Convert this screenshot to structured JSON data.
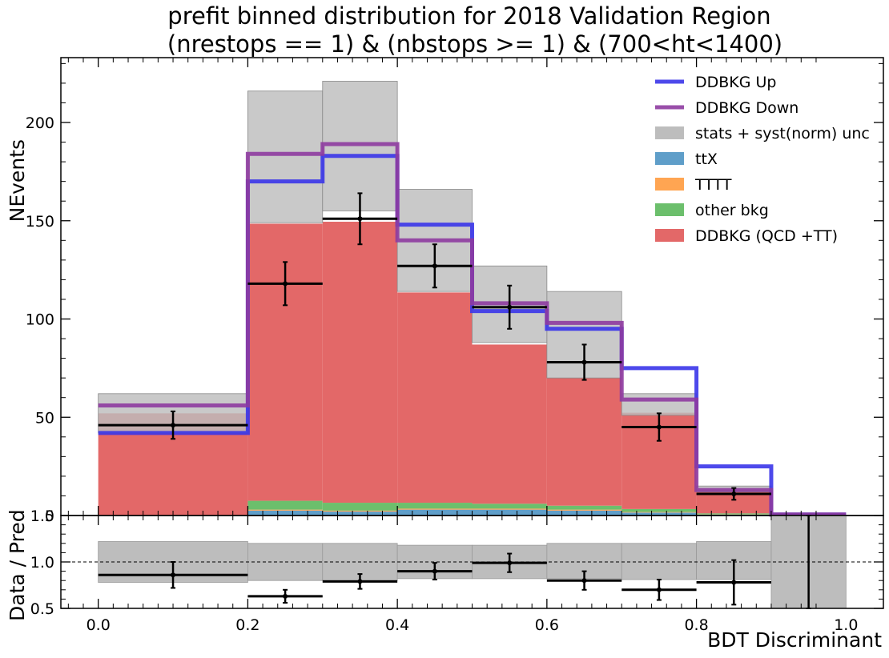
{
  "chart_data": {
    "type": "bar",
    "title": "prefit binned distribution for 2018 Validation Region",
    "subtitle": "(nrestops == 1) & (nbstops >= 1) & (700<ht<1400)",
    "xlabel": "BDT Discriminant",
    "ylabel": "NEvents",
    "ratio_ylabel": "Data / Pred",
    "xlim": [
      -0.05,
      1.05
    ],
    "ylim": [
      0,
      233
    ],
    "ratio_ylim": [
      0.5,
      1.5
    ],
    "grid": false,
    "legend_position": "top-right",
    "bin_edges": [
      0.0,
      0.2,
      0.3,
      0.4,
      0.5,
      0.6,
      0.7,
      0.8,
      0.9,
      1.0
    ],
    "x_ticks": [
      "0.0",
      "0.2",
      "0.4",
      "0.6",
      "0.8",
      "1.0"
    ],
    "x_tick_values": [
      0.0,
      0.2,
      0.4,
      0.6,
      0.8,
      1.0
    ],
    "y_ticks": [
      "50",
      "100",
      "150",
      "200"
    ],
    "y_tick_values": [
      50,
      100,
      150,
      200
    ],
    "ratio_ticks": [
      "0.5",
      "1.0",
      "1.5"
    ],
    "ratio_tick_values": [
      0.5,
      1.0,
      1.5
    ],
    "main_bottom_tick": "0",
    "stack": [
      {
        "name": "ttX",
        "color": "#5f9ec9",
        "values": [
          0,
          2.5,
          2.0,
          3.0,
          3.0,
          2.5,
          1.5,
          0.5,
          0
        ]
      },
      {
        "name": "TTTT",
        "color": "#ffa552",
        "values": [
          0,
          0.5,
          0.5,
          0.5,
          0.5,
          0.5,
          0.3,
          0.1,
          0
        ]
      },
      {
        "name": "other bkg",
        "color": "#6cbf6c",
        "values": [
          0,
          4.5,
          4.0,
          3.0,
          2.5,
          2.0,
          1.5,
          0.5,
          0
        ]
      },
      {
        "name": "DDBKG (QCD +TT)",
        "color": "#e36868",
        "values": [
          52,
          141,
          143,
          107,
          81,
          65,
          49,
          12,
          0
        ]
      }
    ],
    "unc_band": {
      "name": "stats + syst(norm) unc",
      "color": "#bdbdbd",
      "low": [
        42,
        149,
        155,
        114,
        88,
        70,
        51,
        12,
        0
      ],
      "high": [
        62,
        216,
        221,
        166,
        127,
        114,
        62,
        15,
        0
      ]
    },
    "variations": [
      {
        "name": "DDBKG Up",
        "color": "#3a35e9",
        "values": [
          42,
          170,
          183,
          148,
          104,
          95,
          75,
          25,
          0.5
        ]
      },
      {
        "name": "DDBKG Down",
        "color": "#8e3ba0",
        "values": [
          56,
          184,
          189,
          140,
          108,
          98,
          59,
          13,
          0.5
        ]
      }
    ],
    "data": {
      "values": [
        46,
        118,
        151,
        127,
        106,
        78,
        45,
        11,
        0
      ],
      "errors": [
        7,
        11,
        13,
        11,
        11,
        9,
        7,
        3,
        0
      ]
    },
    "ratio": {
      "values": [
        0.86,
        0.63,
        0.79,
        0.9,
        0.99,
        0.8,
        0.7,
        0.78,
        0.5
      ],
      "errors": [
        0.14,
        0.07,
        0.08,
        0.09,
        0.1,
        0.1,
        0.11,
        0.24,
        1.0
      ],
      "band_low": [
        0.78,
        0.8,
        0.8,
        0.82,
        0.82,
        0.82,
        0.81,
        0.81,
        0.5
      ],
      "band_high": [
        1.22,
        1.2,
        1.2,
        1.18,
        1.18,
        1.2,
        1.2,
        1.22,
        1.5
      ]
    },
    "legend_order": [
      "DDBKG Up",
      "DDBKG Down",
      "stats + syst(norm) unc",
      "ttX",
      "TTTT",
      "other bkg",
      "DDBKG (QCD +TT)"
    ]
  }
}
